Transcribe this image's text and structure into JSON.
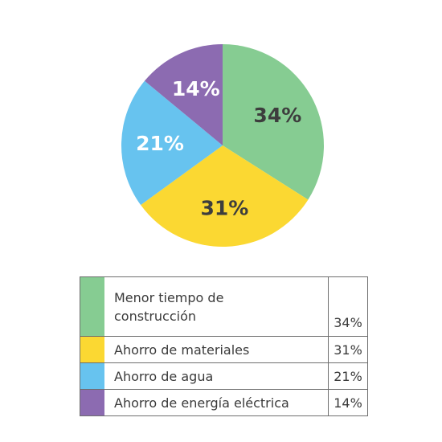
{
  "chart_data": {
    "type": "pie",
    "slices": [
      {
        "label_lines": [
          "Menor tiempo de",
          "construcción"
        ],
        "value": 34,
        "display": "34%",
        "color": "#86cc92",
        "text_color": "#3d3d3d"
      },
      {
        "label_lines": [
          "Ahorro de materiales"
        ],
        "value": 31,
        "display": "31%",
        "color": "#fbd832",
        "text_color": "#3d3d3d"
      },
      {
        "label_lines": [
          "Ahorro de agua"
        ],
        "value": 21,
        "display": "21%",
        "color": "#67c3ef",
        "text_color": "#ffffff"
      },
      {
        "label_lines": [
          "Ahorro de energía eléctrica"
        ],
        "value": 14,
        "display": "14%",
        "color": "#8c6bb1",
        "text_color": "#ffffff"
      }
    ],
    "start": "12 o'clock",
    "direction": "clockwise",
    "legend_placement": "bottom"
  }
}
